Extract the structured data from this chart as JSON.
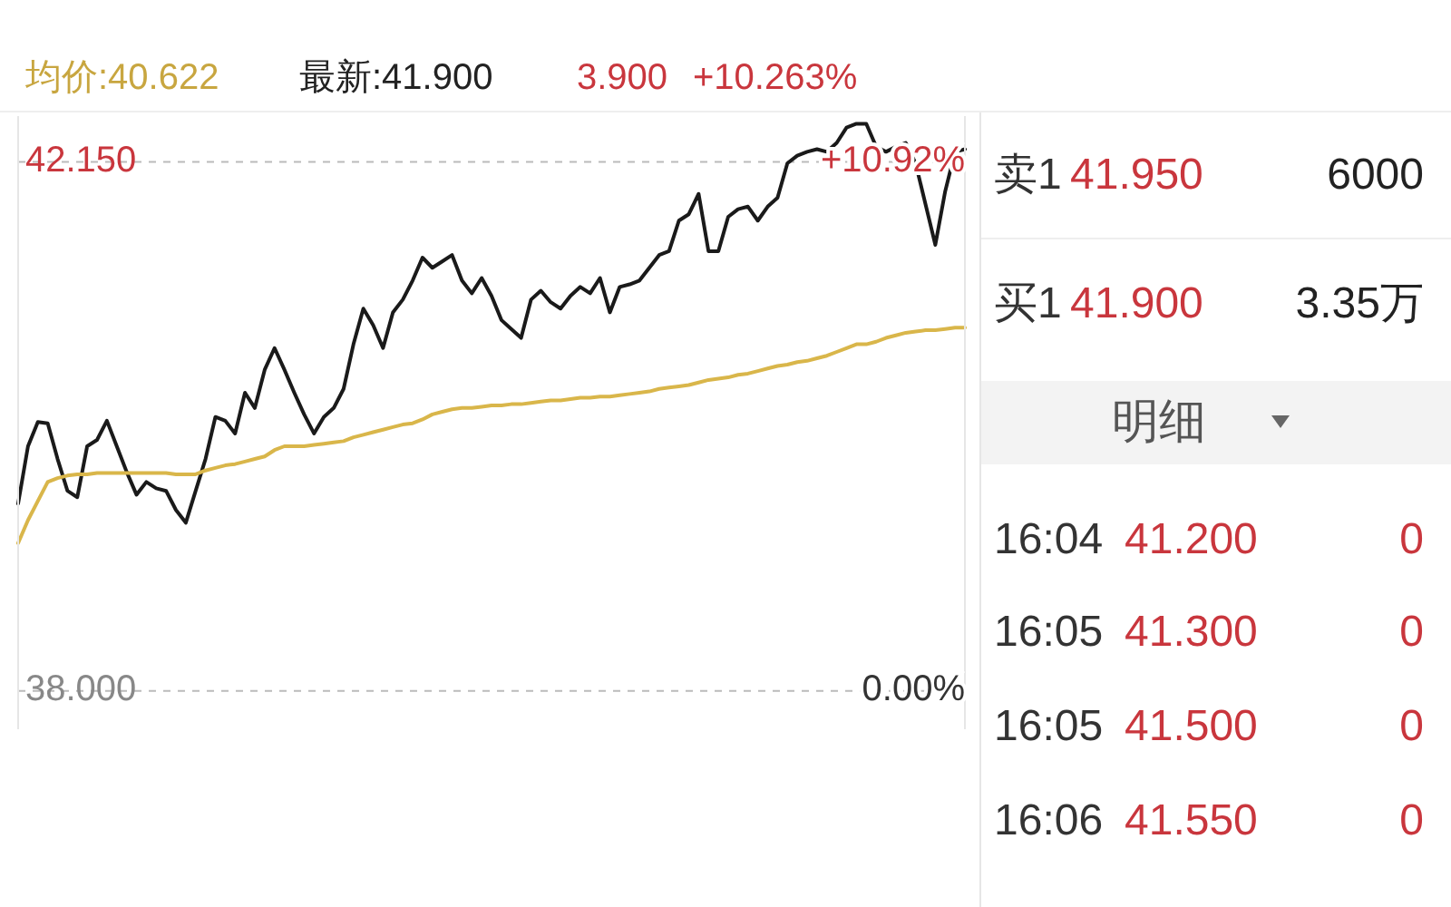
{
  "chart_data": {
    "type": "line",
    "categories": [
      null,
      null,
      null,
      null,
      null,
      null,
      null,
      null,
      null,
      null,
      null,
      null,
      null,
      null,
      null,
      null,
      null,
      null,
      null,
      null,
      null,
      null,
      null,
      null,
      null,
      null,
      null,
      null,
      null,
      null,
      null,
      null,
      null,
      null,
      null,
      null,
      null,
      null,
      null,
      null,
      null,
      null,
      null,
      null,
      null,
      null,
      null,
      null,
      null,
      null,
      null,
      null,
      null,
      null,
      null,
      null,
      null,
      null,
      null,
      null,
      null,
      null,
      null,
      null,
      null,
      null,
      null,
      null,
      null,
      null,
      null,
      null,
      null,
      null,
      null,
      null,
      null,
      null,
      null,
      null,
      null,
      null,
      null,
      null,
      null,
      null,
      null,
      null,
      null,
      null,
      null,
      null,
      null,
      null,
      null,
      null,
      null
    ],
    "series": [
      {
        "color": "#1a1a1a",
        "values": [
          39.47,
          39.92,
          40.11,
          40.1,
          39.82,
          39.57,
          39.52,
          39.92,
          39.97,
          40.12,
          39.92,
          39.72,
          39.54,
          39.64,
          39.59,
          39.57,
          39.42,
          39.32,
          39.57,
          39.82,
          40.15,
          40.12,
          40.02,
          40.34,
          40.22,
          40.52,
          40.69,
          40.52,
          40.34,
          40.17,
          40.02,
          40.15,
          40.22,
          40.37,
          40.72,
          41.0,
          40.87,
          40.69,
          40.97,
          41.07,
          41.22,
          41.4,
          41.32,
          41.37,
          41.42,
          41.22,
          41.12,
          41.24,
          41.1,
          40.91,
          40.84,
          40.77,
          41.07,
          41.14,
          41.05,
          41.0,
          41.1,
          41.17,
          41.12,
          41.24,
          40.97,
          41.17,
          41.19,
          41.22,
          41.32,
          41.42,
          41.45,
          41.69,
          41.74,
          41.9,
          41.45,
          41.45,
          41.72,
          41.78,
          41.8,
          41.69,
          41.8,
          41.87,
          42.14,
          42.2,
          42.23,
          42.25,
          42.23,
          42.3,
          42.42,
          42.45,
          42.45,
          42.27,
          42.23,
          42.27,
          42.3,
          42.14,
          41.82,
          41.5,
          41.92,
          42.23,
          42.25
        ]
      },
      {
        "color": "#d9b64a",
        "values": [
          39.16,
          39.34,
          39.49,
          39.64,
          39.67,
          39.69,
          39.7,
          39.7,
          39.71,
          39.71,
          39.71,
          39.71,
          39.71,
          39.71,
          39.71,
          39.71,
          39.7,
          39.7,
          39.7,
          39.73,
          39.75,
          39.77,
          39.78,
          39.8,
          39.82,
          39.84,
          39.89,
          39.92,
          39.92,
          39.92,
          39.93,
          39.94,
          39.95,
          39.96,
          39.99,
          40.01,
          40.03,
          40.05,
          40.07,
          40.09,
          40.1,
          40.13,
          40.17,
          40.19,
          40.21,
          40.22,
          40.22,
          40.23,
          40.24,
          40.24,
          40.25,
          40.25,
          40.26,
          40.27,
          40.28,
          40.28,
          40.29,
          40.3,
          40.3,
          40.31,
          40.31,
          40.32,
          40.33,
          40.34,
          40.35,
          40.37,
          40.38,
          40.39,
          40.4,
          40.42,
          40.44,
          40.45,
          40.46,
          40.48,
          40.49,
          40.51,
          40.53,
          40.55,
          40.56,
          40.58,
          40.59,
          40.61,
          40.63,
          40.66,
          40.69,
          40.72,
          40.72,
          40.74,
          40.77,
          40.79,
          40.81,
          40.82,
          40.83,
          40.83,
          40.84,
          40.85,
          40.85
        ]
      }
    ],
    "ylim": [
      37.7,
      42.51
    ],
    "yticks": [
      {
        "value": 38,
        "label": "38.000"
      },
      {
        "value": 42.15,
        "label": "42.150"
      }
    ],
    "y2lim": [
      -0.79,
      11.87
    ],
    "y2ticks": [
      {
        "value": 0,
        "label": "0.00%"
      },
      {
        "value": 10.92,
        "label": "+10.92%"
      }
    ],
    "grid": "y",
    "marker": "none",
    "line_style": "solid",
    "tick_labels": "y",
    "annotations": [
      "均价:40.622",
      "最新:41.900",
      "3.900",
      "+10.263%",
      "卖1",
      "41.950",
      "6000",
      "买1",
      "41.900",
      "3.35万",
      "明细",
      "16:04",
      "41.200",
      "0",
      "16:05",
      "41.300",
      "0",
      "16:05",
      "41.500",
      "0",
      "16:06",
      "41.550",
      "0"
    ]
  }
}
